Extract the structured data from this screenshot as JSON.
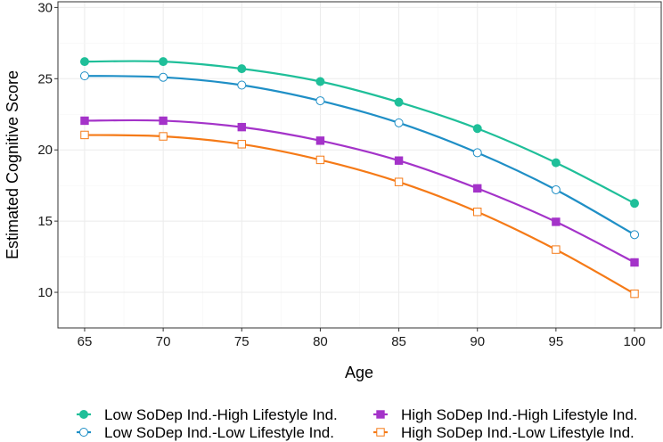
{
  "chart_data": {
    "type": "line",
    "title": "",
    "xlabel": "Age",
    "ylabel": "Estimated Cognitive Score",
    "x": [
      65,
      70,
      75,
      80,
      85,
      90,
      95,
      100
    ],
    "xlim": [
      63.3,
      101.7
    ],
    "ylim": [
      7.5,
      30.4
    ],
    "x_ticks": [
      "65",
      "70",
      "75",
      "80",
      "85",
      "90",
      "95",
      "100"
    ],
    "y_ticks": [
      "10",
      "15",
      "20",
      "25",
      "30"
    ],
    "grid": true,
    "legend_position": "bottom",
    "series": [
      {
        "name": "Low SoDep Ind.-High Lifestyle Ind.",
        "color": "#1fbf99",
        "marker": "filled-circle",
        "values": [
          26.2,
          26.2,
          25.7,
          24.8,
          23.35,
          21.5,
          19.1,
          16.25
        ]
      },
      {
        "name": "Low SoDep Ind.-Low Lifestyle Ind.",
        "color": "#1f8fc6",
        "marker": "open-circle",
        "values": [
          25.2,
          25.1,
          24.55,
          23.45,
          21.9,
          19.8,
          17.2,
          14.05
        ]
      },
      {
        "name": "High SoDep Ind.-High Lifestyle Ind.",
        "color": "#a433c9",
        "marker": "filled-square",
        "values": [
          22.05,
          22.05,
          21.6,
          20.65,
          19.25,
          17.3,
          14.95,
          12.1
        ]
      },
      {
        "name": "High SoDep Ind.-Low Lifestyle Ind.",
        "color": "#f57a17",
        "marker": "open-square",
        "values": [
          21.05,
          20.95,
          20.4,
          19.3,
          17.75,
          15.65,
          13.0,
          9.9
        ]
      }
    ]
  }
}
